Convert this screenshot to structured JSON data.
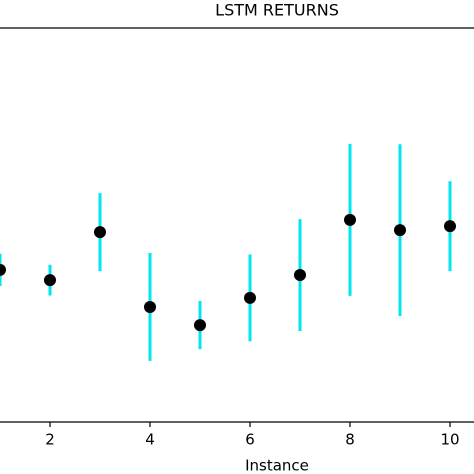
{
  "chart_data": {
    "type": "errorbar",
    "title": "LSTM RETURNS",
    "x_label": "Instance",
    "x": [
      1,
      2,
      3,
      4,
      5,
      6,
      7,
      8,
      9,
      10
    ],
    "values": [
      38.6,
      36.0,
      48.2,
      29.2,
      24.6,
      31.5,
      37.3,
      51.3,
      48.7,
      49.7
    ],
    "errors": [
      4.1,
      3.9,
      9.9,
      13.7,
      6.1,
      11.0,
      14.2,
      19.3,
      21.8,
      11.4
    ],
    "color": "#000000",
    "error_color": "#00e5ee",
    "xlim": [
      1,
      10.48
    ],
    "xticks": [
      2,
      4,
      6,
      8,
      10
    ],
    "ylim": [
      0,
      100
    ]
  }
}
